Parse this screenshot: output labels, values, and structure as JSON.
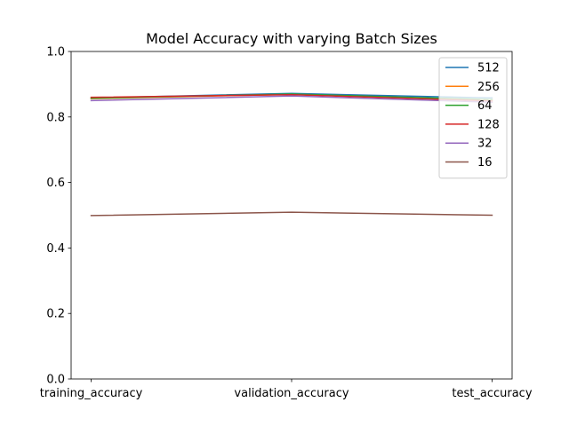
{
  "chart_data": {
    "type": "line",
    "title": "Model Accuracy with varying Batch Sizes",
    "xlabel": "",
    "ylabel": "",
    "categories": [
      "training_accuracy",
      "validation_accuracy",
      "test_accuracy"
    ],
    "ylim": [
      0.0,
      1.0
    ],
    "yticks": [
      "0.0",
      "0.2",
      "0.4",
      "0.6",
      "0.8",
      "1.0"
    ],
    "legend_position": "top-right",
    "grid": false,
    "series": [
      {
        "name": "512",
        "color": "#1f77b4",
        "values": [
          0.858,
          0.872,
          0.858
        ]
      },
      {
        "name": "256",
        "color": "#ff7f0e",
        "values": [
          0.856,
          0.869,
          0.852
        ]
      },
      {
        "name": "64",
        "color": "#2ca02c",
        "values": [
          0.857,
          0.87,
          0.853
        ]
      },
      {
        "name": "128",
        "color": "#d62728",
        "values": [
          0.86,
          0.868,
          0.849
        ]
      },
      {
        "name": "32",
        "color": "#9467bd",
        "values": [
          0.85,
          0.864,
          0.845
        ]
      },
      {
        "name": "16",
        "color": "#8c564b",
        "values": [
          0.499,
          0.509,
          0.5
        ]
      }
    ]
  }
}
